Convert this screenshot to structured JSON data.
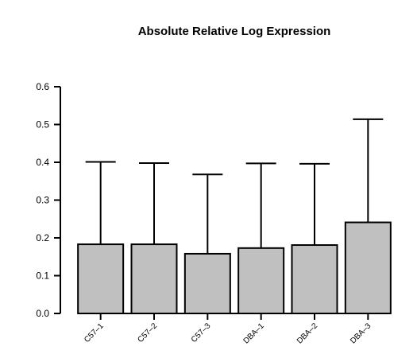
{
  "chart_data": {
    "type": "bar",
    "title": "Absolute Relative Log Expression",
    "xlabel": "",
    "ylabel": "",
    "categories": [
      "C57–1",
      "C57–2",
      "C57–3",
      "DBA–1",
      "DBA–2",
      "DBA–3"
    ],
    "values": [
      0.183,
      0.183,
      0.158,
      0.173,
      0.181,
      0.241
    ],
    "error_upper": [
      0.401,
      0.398,
      0.368,
      0.397,
      0.396,
      0.514
    ],
    "ylim": [
      0,
      0.6
    ],
    "yticks": [
      "0.0",
      "0.1",
      "0.2",
      "0.3",
      "0.4",
      "0.5",
      "0.6"
    ],
    "grid": false,
    "bar_color": "#c0c0c0",
    "edge_color": "#000000"
  }
}
